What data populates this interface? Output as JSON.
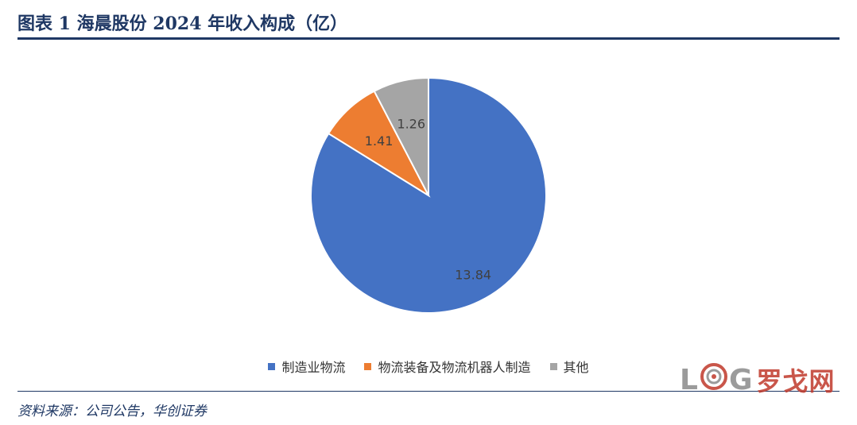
{
  "header": {
    "title": "图表 1 海晨股份 2024 年收入构成（亿）"
  },
  "chart_data": {
    "type": "pie",
    "title": "",
    "categories": [
      "制造业物流",
      "物流装备及物流机器人制造",
      "其他"
    ],
    "values": [
      13.84,
      1.41,
      1.26
    ],
    "labels": [
      "13.84",
      "1.41",
      "1.26"
    ],
    "colors": [
      "#4472C4",
      "#ED7D31",
      "#A5A5A5"
    ],
    "start_angle_deg": 0,
    "direction": "clockwise",
    "legend_position": "bottom"
  },
  "footer": {
    "source": "资料来源：公司公告，华创证券"
  },
  "watermark": {
    "text_l": "L",
    "text_g": "G",
    "text_cn": "罗戈网"
  }
}
